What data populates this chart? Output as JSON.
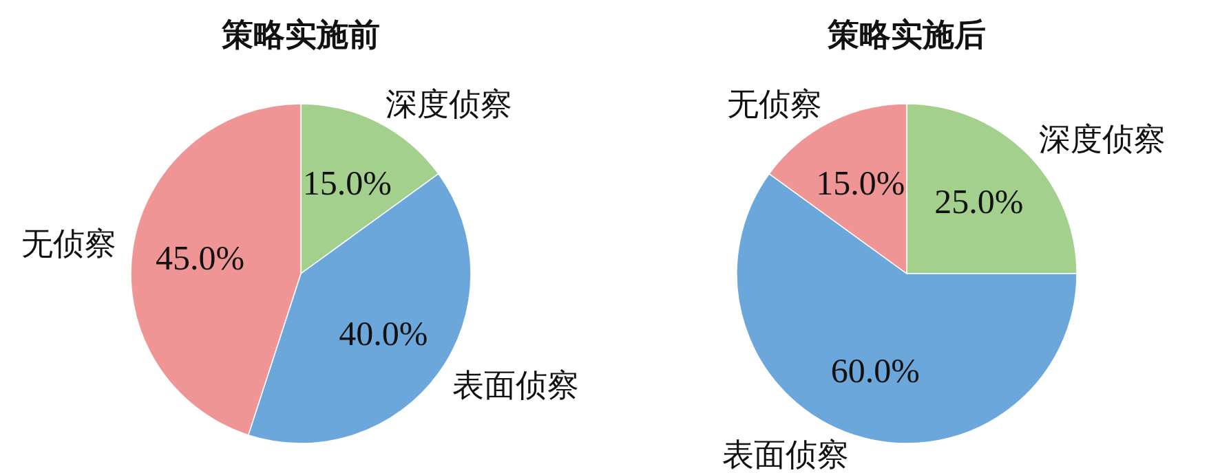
{
  "chart_data": [
    {
      "type": "pie",
      "title": "策略实施前",
      "categories": [
        "深度侦察",
        "表面侦察",
        "无侦察"
      ],
      "values": [
        15,
        40,
        45
      ],
      "colors": [
        "#a3d08d",
        "#6ca7db",
        "#f09595"
      ],
      "value_labels": [
        "15.0%",
        "40.0%",
        "45.0%"
      ]
    },
    {
      "type": "pie",
      "title": "策略实施后",
      "categories": [
        "深度侦察",
        "表面侦察",
        "无侦察"
      ],
      "values": [
        25,
        60,
        15
      ],
      "colors": [
        "#a3d08d",
        "#6ca7db",
        "#f09595"
      ],
      "value_labels": [
        "25.0%",
        "60.0%",
        "15.0%"
      ]
    }
  ]
}
